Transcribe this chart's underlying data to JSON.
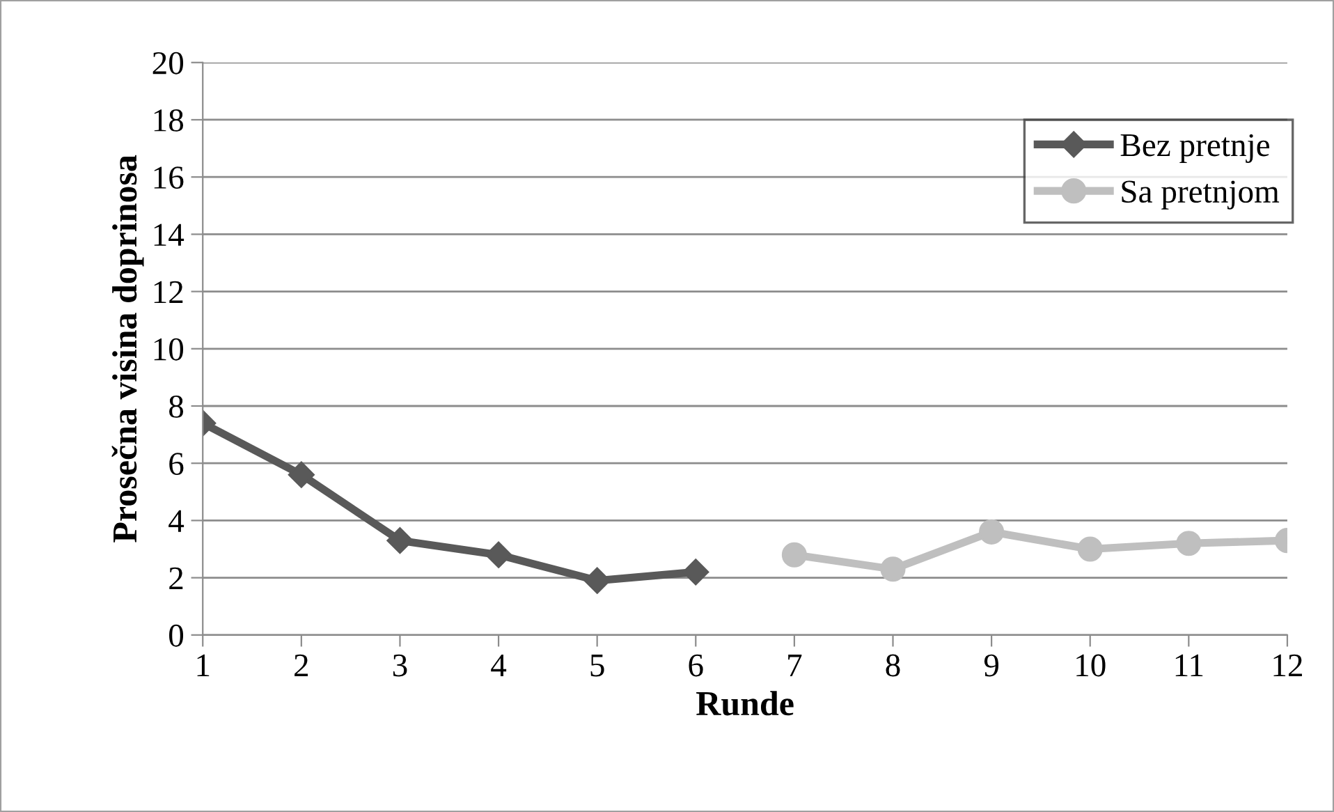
{
  "chart_data": {
    "type": "line",
    "xlabel": "Runde",
    "ylabel": "Prosečna visina doprinosa",
    "categories": [
      "1",
      "2",
      "3",
      "4",
      "5",
      "6",
      "7",
      "8",
      "9",
      "10",
      "11",
      "12"
    ],
    "series": [
      {
        "name": "Bez pretnje",
        "color": "#595959",
        "marker": "diamond",
        "values": [
          7.4,
          5.6,
          3.3,
          2.8,
          1.9,
          2.2,
          null,
          null,
          null,
          null,
          null,
          null
        ]
      },
      {
        "name": "Sa pretnjom",
        "color": "#bfbfbf",
        "marker": "circle",
        "values": [
          null,
          null,
          null,
          null,
          null,
          null,
          2.8,
          2.3,
          3.6,
          3.0,
          3.2,
          3.3
        ]
      }
    ],
    "ylim": [
      0,
      20
    ],
    "yticks": [
      0,
      2,
      4,
      6,
      8,
      10,
      12,
      14,
      16,
      18,
      20
    ],
    "grid": "y",
    "legend": "top right"
  }
}
